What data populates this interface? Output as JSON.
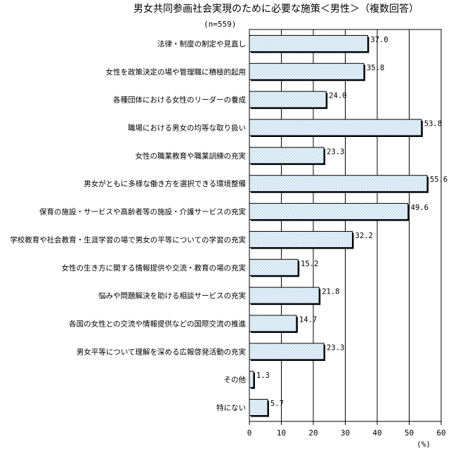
{
  "title": "男女共同参画社会実現のために必要な施策＜男性＞（複数回答）",
  "note": "(n=559)",
  "colors": {
    "bar_fill": "#e6f3fb",
    "bar_stroke": "#000000",
    "grid": "#000000"
  },
  "chart_data": {
    "type": "bar",
    "orientation": "horizontal",
    "title": "男女共同参画社会実現のために必要な施策＜男性＞（複数回答）",
    "xlabel": "(%)",
    "xlim": [
      0,
      60
    ],
    "xticks": [
      "0",
      "10",
      "20",
      "30",
      "40",
      "50",
      "60"
    ],
    "grid": true,
    "categories": [
      "法律・制度の制定や見直し",
      "女性を政策決定の場や管理職に積極的起用",
      "各種団体における女性のリーダーの養成",
      "職場における男女の均等な取り扱い",
      "女性の職業教育や職業訓練の充実",
      "男女がともに多様な働き方を選択できる環境整備",
      "保育の施設・サービスや高齢者等の施設・介護サービスの充実",
      "学校教育や社会教育・生涯学習の場で男女の平等についての学習の充実",
      "女性の生き方に関する情報提供や交流・教育の場の充実",
      "悩みや問題解決を助ける相談サービスの充実",
      "各国の女性との交流や情報提供などの国際交流の推進",
      "男女平等について理解を深める広報啓発活動の充実",
      "その他",
      "特にない"
    ],
    "values": [
      37.0,
      35.8,
      24.0,
      53.8,
      23.3,
      55.6,
      49.6,
      32.2,
      15.2,
      21.8,
      14.7,
      23.3,
      1.3,
      5.7
    ],
    "value_labels": [
      "37.0",
      "35.8",
      "24.0",
      "53.8",
      "23.3",
      "55.6",
      "49.6",
      "32.2",
      "15.2",
      "21.8",
      "14.7",
      "23.3",
      "1.3",
      "5.7"
    ]
  }
}
